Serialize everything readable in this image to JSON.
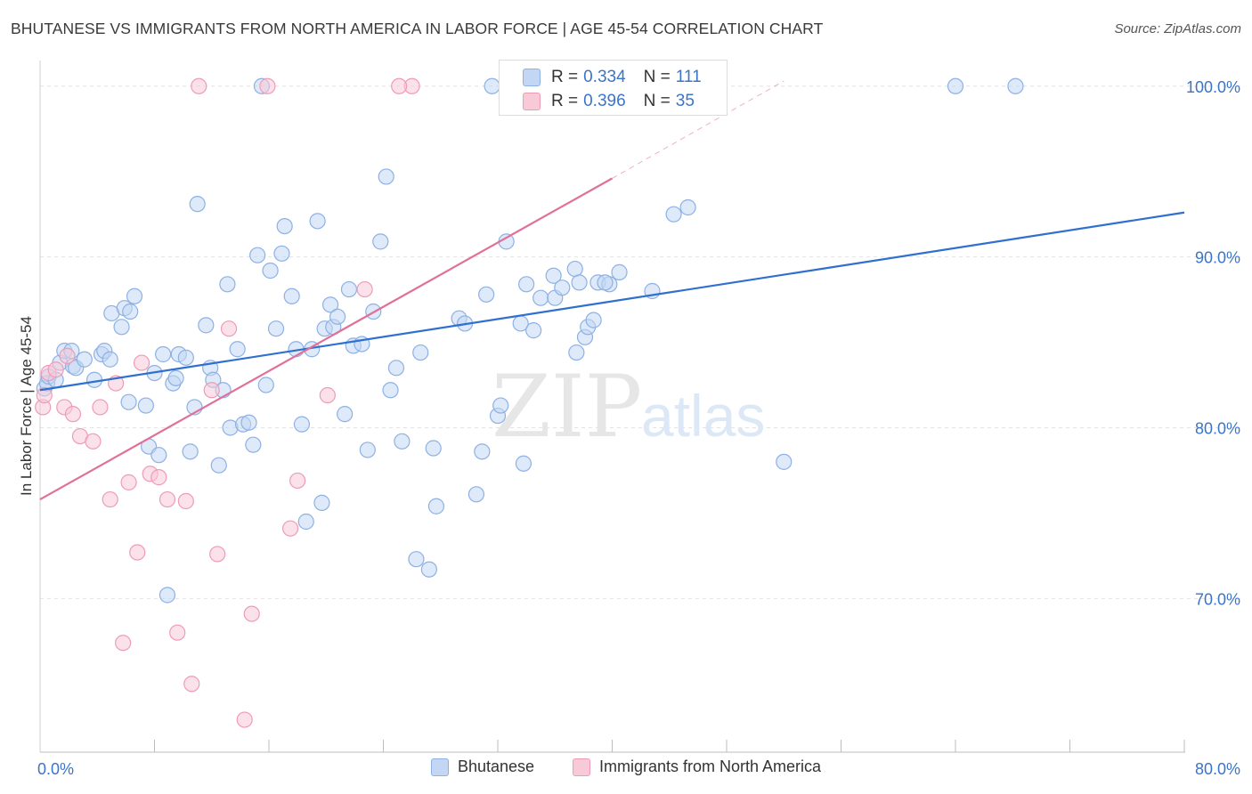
{
  "header": {
    "title": "BHUTANESE VS IMMIGRANTS FROM NORTH AMERICA IN LABOR FORCE | AGE 45-54 CORRELATION CHART",
    "source": "Source: ZipAtlas.com"
  },
  "legend_top": {
    "rows": [
      {
        "r_label": "R =",
        "r_value": "0.334",
        "n_label": "N =",
        "n_value": "111"
      },
      {
        "r_label": "R =",
        "r_value": "0.396",
        "n_label": "N =",
        "n_value": "35"
      }
    ]
  },
  "legend_bottom": {
    "items": [
      {
        "label": "Bhutanese"
      },
      {
        "label": "Immigrants from North America"
      }
    ]
  },
  "watermark": {
    "part1": "ZIP",
    "part2": "atlas"
  },
  "colors": {
    "blue_fill": "#c3d7f4",
    "blue_stroke": "#8db1e4",
    "blue_line": "#2f6fcf",
    "pink_fill": "#f8c9d7",
    "pink_stroke": "#ee9cb6",
    "pink_line": "#e0709a",
    "grid": "#e2e2e2",
    "tick_text": "#3b74c9"
  },
  "chart_data": {
    "type": "scatter",
    "title": "BHUTANESE VS IMMIGRANTS FROM NORTH AMERICA IN LABOR FORCE | AGE 45-54 CORRELATION CHART",
    "xlabel": "",
    "ylabel": "In Labor Force | Age 45-54",
    "xlim": [
      0,
      80
    ],
    "ylim": [
      61,
      101.5
    ],
    "x_tick_labels": [
      {
        "value": 0,
        "label": "0.0%"
      },
      {
        "value": 80,
        "label": "80.0%"
      }
    ],
    "x_minor_ticks": [
      8,
      16,
      24,
      32,
      40,
      48,
      56,
      64,
      72
    ],
    "y_ticks": [
      {
        "value": 70,
        "label": "70.0%"
      },
      {
        "value": 80,
        "label": "80.0%"
      },
      {
        "value": 90,
        "label": "90.0%"
      },
      {
        "value": 100,
        "label": "100.0%"
      }
    ],
    "grid": true,
    "series": [
      {
        "name": "Bhutanese",
        "r": 0.334,
        "n": 111,
        "trend": {
          "x0": 0,
          "y0": 82.2,
          "x1": 80,
          "y1": 92.6
        },
        "points": [
          [
            0.3,
            82.3
          ],
          [
            0.5,
            82.6
          ],
          [
            0.6,
            83.0
          ],
          [
            1.1,
            82.8
          ],
          [
            1.4,
            83.8
          ],
          [
            1.7,
            84.5
          ],
          [
            2.2,
            84.5
          ],
          [
            2.3,
            83.6
          ],
          [
            2.5,
            83.5
          ],
          [
            3.1,
            84.0
          ],
          [
            3.8,
            82.8
          ],
          [
            4.3,
            84.3
          ],
          [
            4.5,
            84.5
          ],
          [
            4.9,
            84.0
          ],
          [
            5.0,
            86.7
          ],
          [
            5.7,
            85.9
          ],
          [
            5.9,
            87.0
          ],
          [
            6.3,
            86.8
          ],
          [
            6.6,
            87.7
          ],
          [
            6.2,
            81.5
          ],
          [
            7.4,
            81.3
          ],
          [
            7.6,
            78.9
          ],
          [
            8.0,
            83.2
          ],
          [
            8.3,
            78.4
          ],
          [
            8.6,
            84.3
          ],
          [
            8.9,
            70.2
          ],
          [
            9.3,
            82.6
          ],
          [
            9.5,
            82.9
          ],
          [
            9.7,
            84.3
          ],
          [
            10.2,
            84.1
          ],
          [
            10.5,
            78.6
          ],
          [
            10.8,
            81.2
          ],
          [
            11.0,
            93.1
          ],
          [
            11.6,
            86.0
          ],
          [
            11.9,
            83.5
          ],
          [
            12.1,
            82.8
          ],
          [
            12.5,
            77.8
          ],
          [
            12.8,
            82.2
          ],
          [
            13.1,
            88.4
          ],
          [
            13.3,
            80.0
          ],
          [
            13.8,
            84.6
          ],
          [
            14.2,
            80.2
          ],
          [
            14.6,
            80.3
          ],
          [
            14.9,
            79.0
          ],
          [
            15.2,
            90.1
          ],
          [
            15.5,
            100.0
          ],
          [
            15.8,
            82.5
          ],
          [
            16.1,
            89.2
          ],
          [
            16.5,
            85.8
          ],
          [
            16.9,
            90.2
          ],
          [
            17.1,
            91.8
          ],
          [
            17.6,
            87.7
          ],
          [
            17.9,
            84.6
          ],
          [
            18.3,
            80.2
          ],
          [
            18.6,
            74.5
          ],
          [
            19.4,
            92.1
          ],
          [
            19.7,
            75.6
          ],
          [
            19.9,
            85.8
          ],
          [
            20.3,
            87.2
          ],
          [
            20.5,
            85.9
          ],
          [
            20.8,
            86.5
          ],
          [
            21.3,
            80.8
          ],
          [
            21.6,
            88.1
          ],
          [
            21.9,
            84.8
          ],
          [
            22.5,
            84.9
          ],
          [
            22.9,
            78.7
          ],
          [
            23.3,
            86.8
          ],
          [
            23.8,
            90.9
          ],
          [
            24.2,
            94.7
          ],
          [
            24.5,
            82.2
          ],
          [
            24.9,
            83.5
          ],
          [
            25.3,
            79.2
          ],
          [
            26.3,
            72.3
          ],
          [
            26.6,
            84.4
          ],
          [
            27.2,
            71.7
          ],
          [
            27.5,
            78.8
          ],
          [
            27.7,
            75.4
          ],
          [
            29.3,
            86.4
          ],
          [
            29.7,
            86.1
          ],
          [
            30.5,
            76.1
          ],
          [
            30.9,
            78.6
          ],
          [
            31.2,
            87.8
          ],
          [
            31.6,
            100.0
          ],
          [
            32.0,
            80.7
          ],
          [
            32.2,
            81.3
          ],
          [
            32.6,
            90.9
          ],
          [
            33.6,
            86.1
          ],
          [
            33.8,
            77.9
          ],
          [
            34.0,
            88.4
          ],
          [
            34.5,
            85.7
          ],
          [
            35.0,
            87.6
          ],
          [
            35.9,
            88.9
          ],
          [
            36.0,
            87.6
          ],
          [
            36.5,
            88.2
          ],
          [
            37.4,
            89.3
          ],
          [
            37.7,
            88.5
          ],
          [
            37.5,
            84.4
          ],
          [
            38.1,
            85.3
          ],
          [
            38.3,
            85.9
          ],
          [
            38.7,
            86.3
          ],
          [
            39.0,
            88.5
          ],
          [
            39.8,
            88.4
          ],
          [
            40.5,
            89.1
          ],
          [
            42.8,
            88.0
          ],
          [
            44.3,
            92.5
          ],
          [
            45.3,
            92.9
          ],
          [
            52.0,
            78.0
          ],
          [
            64.0,
            100.0
          ],
          [
            68.2,
            100.0
          ],
          [
            39.5,
            88.5
          ],
          [
            19.0,
            84.6
          ]
        ]
      },
      {
        "name": "Immigrants from North America",
        "r": 0.396,
        "n": 35,
        "trend": {
          "x0": 0,
          "y0": 75.8,
          "x1": 40,
          "y1": 94.6,
          "dash_x1": 52,
          "dash_y1": 100.3
        },
        "points": [
          [
            0.2,
            81.2
          ],
          [
            0.3,
            81.9
          ],
          [
            0.6,
            83.2
          ],
          [
            1.1,
            83.4
          ],
          [
            1.7,
            81.2
          ],
          [
            1.9,
            84.2
          ],
          [
            2.3,
            80.8
          ],
          [
            2.8,
            79.5
          ],
          [
            3.7,
            79.2
          ],
          [
            4.2,
            81.2
          ],
          [
            4.9,
            75.8
          ],
          [
            5.3,
            82.6
          ],
          [
            5.8,
            67.4
          ],
          [
            6.2,
            76.8
          ],
          [
            6.8,
            72.7
          ],
          [
            7.1,
            83.8
          ],
          [
            7.7,
            77.3
          ],
          [
            8.3,
            77.1
          ],
          [
            8.9,
            75.8
          ],
          [
            9.6,
            68.0
          ],
          [
            10.2,
            75.7
          ],
          [
            10.6,
            65.0
          ],
          [
            11.1,
            100.0
          ],
          [
            12.0,
            82.2
          ],
          [
            12.4,
            72.6
          ],
          [
            13.2,
            85.8
          ],
          [
            14.3,
            62.9
          ],
          [
            14.8,
            69.1
          ],
          [
            15.9,
            100.0
          ],
          [
            17.5,
            74.1
          ],
          [
            18.0,
            76.9
          ],
          [
            20.1,
            81.9
          ],
          [
            22.7,
            88.1
          ],
          [
            26.0,
            100.0
          ],
          [
            25.1,
            100.0
          ]
        ]
      }
    ]
  }
}
